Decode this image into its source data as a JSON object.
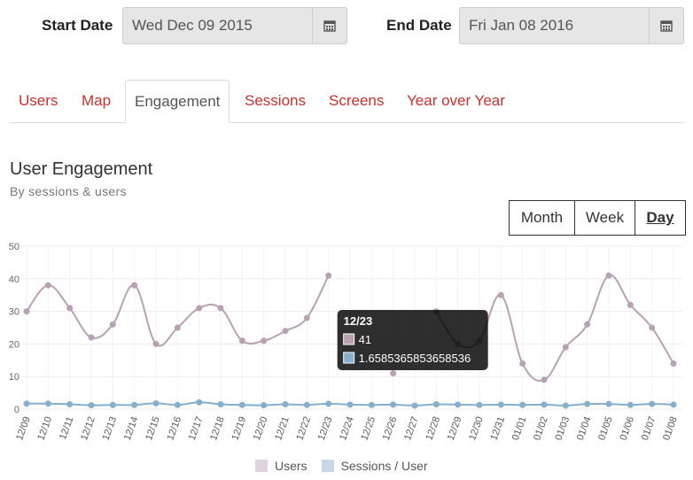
{
  "filters": {
    "start_label": "Start Date",
    "start_value": "Wed Dec 09 2015",
    "end_label": "End Date",
    "end_value": "Fri Jan 08 2016",
    "calendar_icon": "calendar-icon"
  },
  "tabs": [
    {
      "label": "Users",
      "active": false
    },
    {
      "label": "Map",
      "active": false
    },
    {
      "label": "Engagement",
      "active": true
    },
    {
      "label": "Sessions",
      "active": false
    },
    {
      "label": "Screens",
      "active": false
    },
    {
      "label": "Year over Year",
      "active": false
    }
  ],
  "section": {
    "title": "User Engagement",
    "subtitle": "By sessions & users"
  },
  "granularity": {
    "month": "Month",
    "week": "Week",
    "day": "Day",
    "selected": "Day"
  },
  "chart_data": {
    "type": "line",
    "title": "",
    "xlabel": "",
    "ylabel": "",
    "categories": [
      "12/09",
      "12/10",
      "12/11",
      "12/12",
      "12/13",
      "12/14",
      "12/15",
      "12/16",
      "12/17",
      "12/18",
      "12/19",
      "12/20",
      "12/21",
      "12/22",
      "12/23",
      "12/24",
      "12/25",
      "12/26",
      "12/27",
      "12/28",
      "12/29",
      "12/30",
      "12/31",
      "01/01",
      "01/02",
      "01/03",
      "01/04",
      "01/05",
      "01/06",
      "01/07",
      "01/08"
    ],
    "yticks": [
      0,
      10,
      20,
      30,
      40,
      50
    ],
    "ylim": [
      0,
      50
    ],
    "grid": true,
    "legend_position": "bottom",
    "series": [
      {
        "name": "Users",
        "color": "#b9a1b4",
        "values": [
          30,
          38,
          31,
          22,
          26,
          38,
          20,
          25,
          31,
          31,
          21,
          21,
          24,
          28,
          41,
          null,
          null,
          11,
          null,
          30,
          20,
          21,
          35,
          14,
          9,
          19,
          26,
          41,
          32,
          25,
          14
        ]
      },
      {
        "name": "Sessions / User",
        "color": "#86aecd",
        "values": [
          1.7,
          1.7,
          1.5,
          1.2,
          1.3,
          1.3,
          1.8,
          1.3,
          2.1,
          1.5,
          1.3,
          1.2,
          1.5,
          1.3,
          1.66,
          1.4,
          1.3,
          1.4,
          1.1,
          1.5,
          1.4,
          1.3,
          1.4,
          1.3,
          1.4,
          1.1,
          1.6,
          1.6,
          1.3,
          1.6,
          1.4
        ]
      }
    ],
    "tooltip": {
      "category": "12/23",
      "users": "41",
      "sessions_per_user": "1.6585365853658536"
    }
  },
  "legend": {
    "users_label": "Users",
    "users_color": "#e0d3dd",
    "sessions_label": "Sessions / User",
    "sessions_color": "#c6d8e8"
  }
}
